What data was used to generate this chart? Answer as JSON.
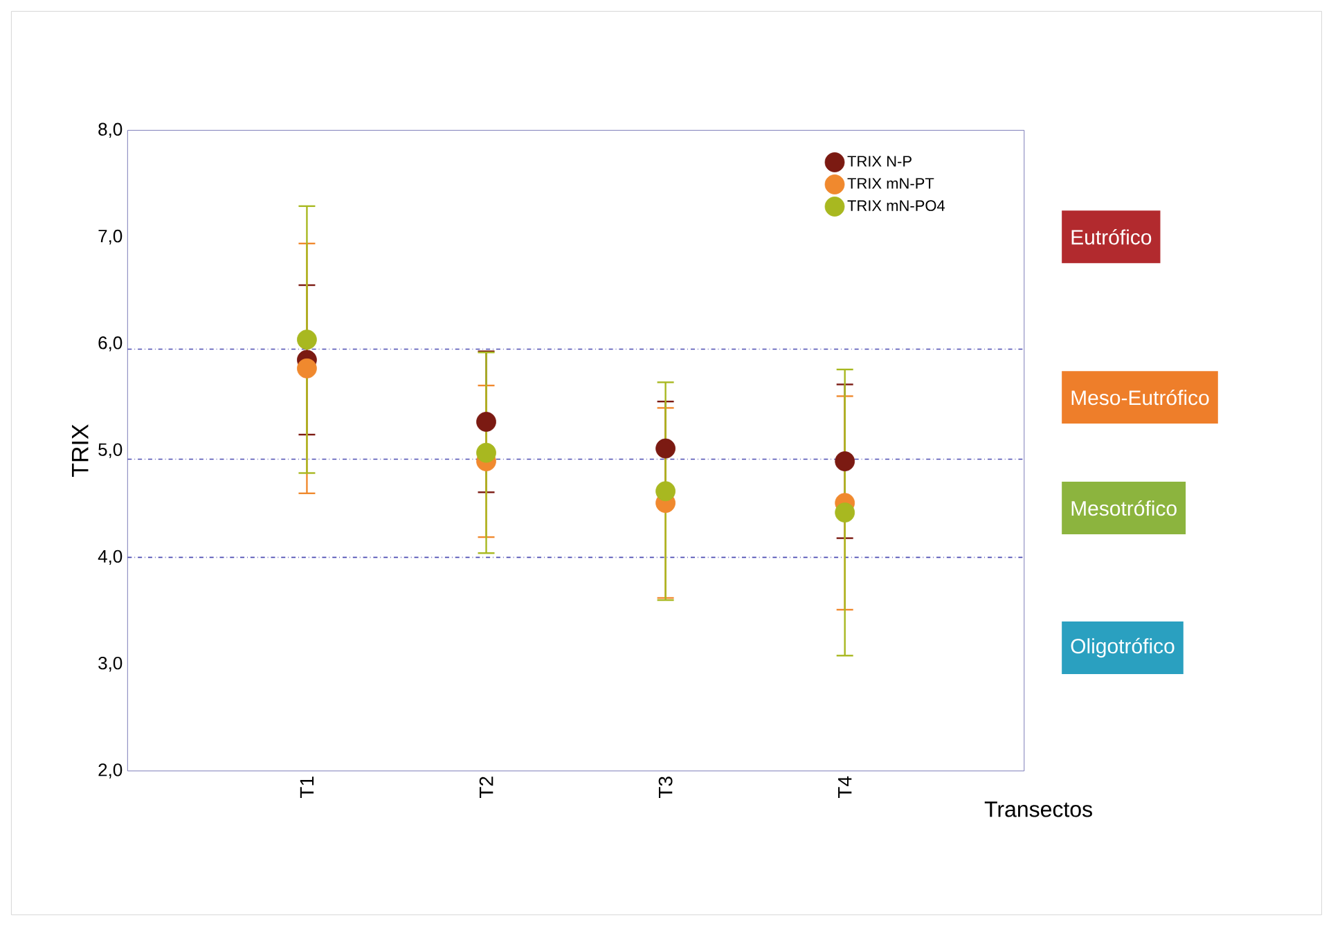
{
  "chart_data": {
    "type": "scatter",
    "xlabel": "Transectos",
    "ylabel": "TRIX",
    "categories": [
      "T1",
      "T2",
      "T3",
      "T4"
    ],
    "series": [
      {
        "name": "TRIX N-P",
        "color": "#7b1a12",
        "values": [
          5.85,
          5.27,
          5.02,
          4.9
        ],
        "errors": [
          0.7,
          0.66,
          0.44,
          0.72
        ]
      },
      {
        "name": "TRIX mN-PT",
        "color": "#f0892e",
        "values": [
          5.77,
          4.9,
          4.51,
          4.51
        ],
        "errors": [
          1.17,
          0.71,
          0.89,
          1.0
        ]
      },
      {
        "name": "TRIX mN-PO4",
        "color": "#a8b820",
        "values": [
          6.04,
          4.98,
          4.62,
          4.42
        ],
        "errors": [
          1.25,
          0.94,
          1.02,
          1.34
        ]
      }
    ],
    "ylim": [
      2,
      8
    ],
    "yticks": [
      {
        "value": 2,
        "label": "2,0"
      },
      {
        "value": 3,
        "label": "3,0"
      },
      {
        "value": 4,
        "label": "4,0"
      },
      {
        "value": 5,
        "label": "5,0"
      },
      {
        "value": 6,
        "label": "6,0"
      },
      {
        "value": 7,
        "label": "7,0"
      },
      {
        "value": 8,
        "label": "8,0"
      }
    ],
    "ref_lines": [
      {
        "axis": "y",
        "value": 5.95
      },
      {
        "axis": "y",
        "value": 4.92
      },
      {
        "axis": "y",
        "value": 4.0
      }
    ],
    "annotations": [
      "Eutrófico",
      "Meso-Eutrófico",
      "Mesotrófico",
      "Oligotrófico"
    ],
    "legend": "top right",
    "marker": "circle",
    "grid": false
  }
}
